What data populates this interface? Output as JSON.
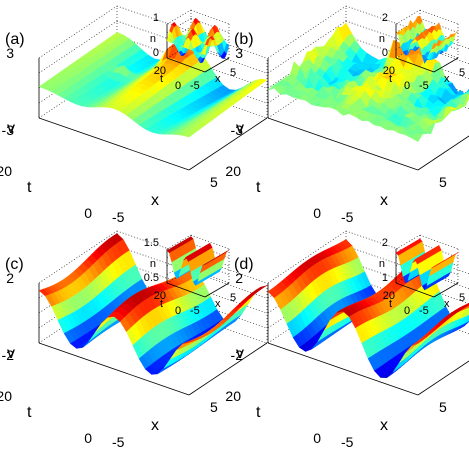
{
  "chart_data": [
    {
      "type": "surface",
      "panel_label": "(a)",
      "xlabel": "x",
      "ylabel": "t",
      "zlabel": "v",
      "xlim": [
        -5,
        5
      ],
      "ylim": [
        0,
        20
      ],
      "zlim": [
        -3,
        3
      ],
      "x_ticks": [
        "-5",
        "5"
      ],
      "y_ticks": [
        "0",
        "20"
      ],
      "z_ticks": [
        "-3",
        "3"
      ],
      "grid": true,
      "inset": {
        "type": "surface",
        "zlabel": "n",
        "xlabel": "x",
        "ylabel": "t",
        "zlim": [
          0,
          1
        ],
        "z_ticks": [
          "0",
          "1"
        ],
        "x_ticks": [
          "-5",
          "5"
        ],
        "y_ticks": [
          "0",
          "20"
        ]
      }
    },
    {
      "type": "surface",
      "panel_label": "(b)",
      "xlabel": "x",
      "ylabel": "t",
      "zlabel": "v",
      "xlim": [
        -5,
        5
      ],
      "ylim": [
        0,
        20
      ],
      "zlim": [
        -3,
        3
      ],
      "x_ticks": [
        "-5",
        "5"
      ],
      "y_ticks": [
        "0",
        "20"
      ],
      "z_ticks": [
        "-3",
        "3"
      ],
      "grid": true,
      "inset": {
        "type": "surface",
        "zlabel": "n",
        "xlabel": "x",
        "ylabel": "t",
        "zlim": [
          0,
          2
        ],
        "z_ticks": [
          "0",
          "2"
        ],
        "x_ticks": [
          "-5",
          "5"
        ],
        "y_ticks": [
          "0",
          "20"
        ]
      }
    },
    {
      "type": "surface",
      "panel_label": "(c)",
      "xlabel": "x",
      "ylabel": "t",
      "zlabel": "v",
      "xlim": [
        -5,
        5
      ],
      "ylim": [
        0,
        20
      ],
      "zlim": [
        -2,
        2
      ],
      "x_ticks": [
        "-5",
        "5"
      ],
      "y_ticks": [
        "0",
        "20"
      ],
      "z_ticks": [
        "-2",
        "2"
      ],
      "grid": true,
      "inset": {
        "type": "surface",
        "zlabel": "n",
        "xlabel": "x",
        "ylabel": "t",
        "zlim": [
          0,
          1.5
        ],
        "z_ticks": [
          "0.5",
          "1.5"
        ],
        "x_ticks": [
          "-5",
          "5"
        ],
        "y_ticks": [
          "0",
          "20"
        ]
      }
    },
    {
      "type": "surface",
      "panel_label": "(d)",
      "xlabel": "x",
      "ylabel": "t",
      "zlabel": "v",
      "xlim": [
        -5,
        5
      ],
      "ylim": [
        0,
        20
      ],
      "zlim": [
        -2,
        2
      ],
      "x_ticks": [
        "-5",
        "5"
      ],
      "y_ticks": [
        "0",
        "20"
      ],
      "z_ticks": [
        "-2",
        "2"
      ],
      "grid": true,
      "inset": {
        "type": "surface",
        "zlabel": "n",
        "xlabel": "x",
        "ylabel": "t",
        "zlim": [
          0,
          2
        ],
        "z_ticks": [
          "1",
          "2"
        ],
        "x_ticks": [
          "-5",
          "5"
        ],
        "y_ticks": [
          "0",
          "20"
        ]
      }
    }
  ],
  "colors": {
    "colormap": [
      "#00008f",
      "#0000ff",
      "#0080ff",
      "#00ffff",
      "#80ff80",
      "#ffff00",
      "#ff8000",
      "#ff0000",
      "#800000"
    ],
    "grid": "#000000",
    "text": "#000000"
  }
}
